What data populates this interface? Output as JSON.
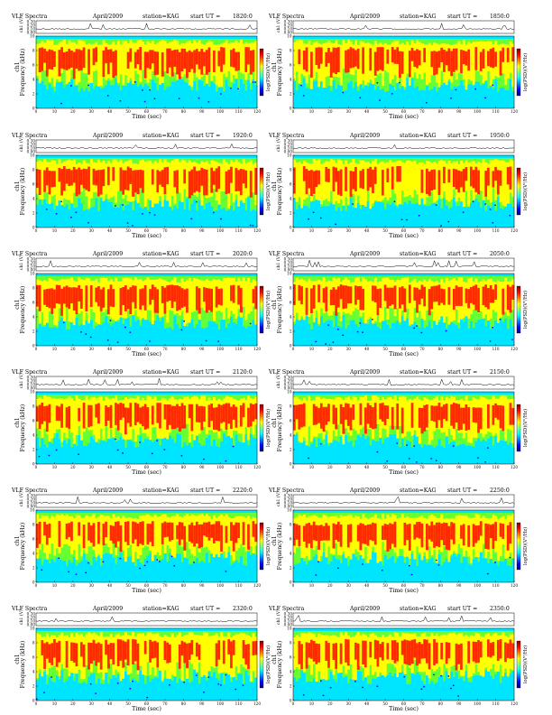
{
  "figure": {
    "title_left": "VLF Spectra",
    "date": "April/2009",
    "station": "station=KAG",
    "start_prefix": "start  UT  =",
    "time_axis_label": "Time (sec)",
    "freq_axis_label": "Frequency (kHz)",
    "channel_label": "ch1",
    "signal_axis_label": "ch1 (V)",
    "colorbar_label": "log(PSD)(V²/Hz)",
    "colorbar_scale": [
      "#000080",
      "#0000ff",
      "#0080ff",
      "#00ffff",
      "#80ff80",
      "#ffff00",
      "#ff8000",
      "#ff0000",
      "#800000"
    ],
    "spectrogram_palette": {
      "background": "#00ff00",
      "low": "#00e5ff",
      "mid": "#66ff33",
      "high": "#ffff00",
      "peak": "#ff2a00",
      "dark": "#0000ff"
    }
  },
  "chart_data": [
    {
      "type": "heatmap",
      "start_ut": "1820:0",
      "xlim": [
        0,
        120
      ],
      "ylim": [
        0,
        10
      ],
      "signal_ylim": [
        0.0,
        0.3
      ],
      "xticks": [
        0,
        10,
        20,
        30,
        40,
        50,
        60,
        70,
        80,
        90,
        100,
        110,
        120
      ],
      "yticks": [
        0,
        2,
        4,
        6,
        8,
        10
      ],
      "signal_ticks": [
        "0.30",
        "0.20",
        "0.10",
        "0.00"
      ]
    },
    {
      "type": "heatmap",
      "start_ut": "1850:0",
      "xlim": [
        0,
        120
      ],
      "ylim": [
        0,
        10
      ],
      "signal_ylim": [
        0.0,
        0.3
      ],
      "xticks": [
        0,
        10,
        20,
        30,
        40,
        50,
        60,
        70,
        80,
        90,
        100,
        110,
        120
      ],
      "yticks": [
        0,
        2,
        4,
        6,
        8,
        10
      ],
      "signal_ticks": [
        "0.30",
        "0.20",
        "0.10",
        "0.00"
      ]
    },
    {
      "type": "heatmap",
      "start_ut": "1920:0",
      "xlim": [
        0,
        120
      ],
      "ylim": [
        0,
        10
      ],
      "signal_ylim": [
        0.0,
        0.3
      ],
      "xticks": [
        0,
        10,
        20,
        30,
        40,
        50,
        60,
        70,
        80,
        90,
        100,
        110,
        120
      ],
      "yticks": [
        0,
        2,
        4,
        6,
        8,
        10
      ],
      "signal_ticks": [
        "0.30",
        "0.20",
        "0.10",
        "0.00"
      ]
    },
    {
      "type": "heatmap",
      "start_ut": "1950:0",
      "xlim": [
        0,
        120
      ],
      "ylim": [
        0,
        10
      ],
      "signal_ylim": [
        0.0,
        0.3
      ],
      "xticks": [
        0,
        10,
        20,
        30,
        40,
        50,
        60,
        70,
        80,
        90,
        100,
        110,
        120
      ],
      "yticks": [
        0,
        2,
        4,
        6,
        8,
        10
      ],
      "signal_ticks": [
        "0.30",
        "0.20",
        "0.10",
        "0.00"
      ]
    },
    {
      "type": "heatmap",
      "start_ut": "2020:0",
      "xlim": [
        0,
        120
      ],
      "ylim": [
        0,
        10
      ],
      "signal_ylim": [
        0.0,
        0.3
      ],
      "xticks": [
        0,
        10,
        20,
        30,
        40,
        50,
        60,
        70,
        80,
        90,
        100,
        110,
        120
      ],
      "yticks": [
        0,
        2,
        4,
        6,
        8,
        10
      ],
      "signal_ticks": [
        "0.30",
        "0.20",
        "0.10",
        "0.00"
      ]
    },
    {
      "type": "heatmap",
      "start_ut": "2050:0",
      "xlim": [
        0,
        120
      ],
      "ylim": [
        0,
        10
      ],
      "signal_ylim": [
        0.0,
        0.3
      ],
      "xticks": [
        0,
        10,
        20,
        30,
        40,
        50,
        60,
        70,
        80,
        90,
        100,
        110,
        120
      ],
      "yticks": [
        0,
        2,
        4,
        6,
        8,
        10
      ],
      "signal_ticks": [
        "0.30",
        "0.20",
        "0.10",
        "0.00"
      ]
    },
    {
      "type": "heatmap",
      "start_ut": "2120:0",
      "xlim": [
        0,
        120
      ],
      "ylim": [
        0,
        10
      ],
      "signal_ylim": [
        0.0,
        0.3
      ],
      "xticks": [
        0,
        10,
        20,
        30,
        40,
        50,
        60,
        70,
        80,
        90,
        100,
        110,
        120
      ],
      "yticks": [
        0,
        2,
        4,
        6,
        8,
        10
      ],
      "signal_ticks": [
        "0.30",
        "0.20",
        "0.10",
        "0.00"
      ]
    },
    {
      "type": "heatmap",
      "start_ut": "2150:0",
      "xlim": [
        0,
        120
      ],
      "ylim": [
        0,
        10
      ],
      "signal_ylim": [
        0.0,
        0.3
      ],
      "xticks": [
        0,
        10,
        20,
        30,
        40,
        50,
        60,
        70,
        80,
        90,
        100,
        110,
        120
      ],
      "yticks": [
        0,
        2,
        4,
        6,
        8,
        10
      ],
      "signal_ticks": [
        "0.30",
        "0.20",
        "0.10",
        "0.00"
      ]
    },
    {
      "type": "heatmap",
      "start_ut": "2220:0",
      "xlim": [
        0,
        120
      ],
      "ylim": [
        0,
        10
      ],
      "signal_ylim": [
        0.0,
        0.3
      ],
      "xticks": [
        0,
        10,
        20,
        30,
        40,
        50,
        60,
        70,
        80,
        90,
        100,
        110,
        120
      ],
      "yticks": [
        0,
        2,
        4,
        6,
        8,
        10
      ],
      "signal_ticks": [
        "0.30",
        "0.20",
        "0.10",
        "0.00"
      ]
    },
    {
      "type": "heatmap",
      "start_ut": "2250:0",
      "xlim": [
        0,
        120
      ],
      "ylim": [
        0,
        10
      ],
      "signal_ylim": [
        0.0,
        0.3
      ],
      "xticks": [
        0,
        10,
        20,
        30,
        40,
        50,
        60,
        70,
        80,
        90,
        100,
        110,
        120
      ],
      "yticks": [
        0,
        2,
        4,
        6,
        8,
        10
      ],
      "signal_ticks": [
        "0.30",
        "0.20",
        "0.10",
        "0.00"
      ]
    },
    {
      "type": "heatmap",
      "start_ut": "2320:0",
      "xlim": [
        0,
        120
      ],
      "ylim": [
        0,
        10
      ],
      "signal_ylim": [
        0.0,
        0.3
      ],
      "xticks": [
        0,
        10,
        20,
        30,
        40,
        50,
        60,
        70,
        80,
        90,
        100,
        110,
        120
      ],
      "yticks": [
        0,
        2,
        4,
        6,
        8,
        10
      ],
      "signal_ticks": [
        "0.30",
        "0.20",
        "0.10",
        "0.00"
      ]
    },
    {
      "type": "heatmap",
      "start_ut": "2350:0",
      "xlim": [
        0,
        120
      ],
      "ylim": [
        0,
        10
      ],
      "signal_ylim": [
        0.0,
        0.3
      ],
      "xticks": [
        0,
        10,
        20,
        30,
        40,
        50,
        60,
        70,
        80,
        90,
        100,
        110,
        120
      ],
      "yticks": [
        0,
        2,
        4,
        6,
        8,
        10
      ],
      "signal_ticks": [
        "0.30",
        "0.20",
        "0.10",
        "0.00"
      ]
    }
  ]
}
